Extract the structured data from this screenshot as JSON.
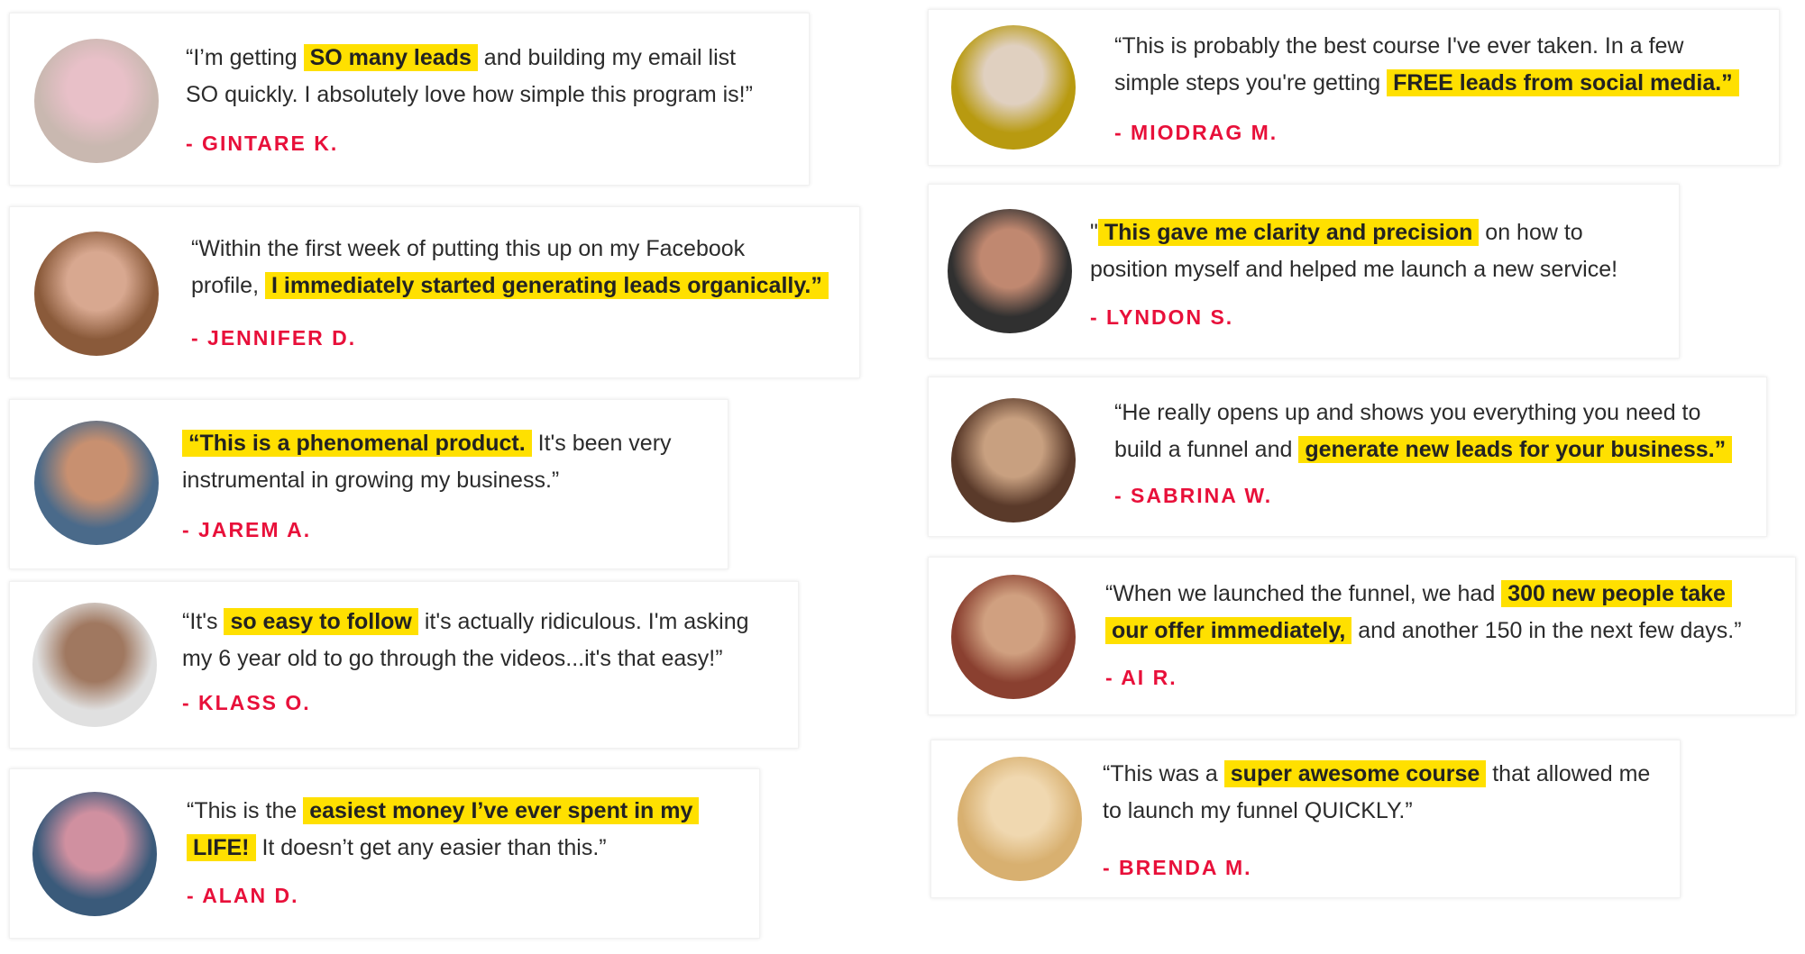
{
  "colors": {
    "highlight": "#ffe000",
    "name": "#e8103a",
    "text": "#2b2b2b"
  },
  "testimonials": [
    {
      "name": "- GINTARE K.",
      "avatar": "photo-woman-blonde",
      "lines": [
        [
          {
            "t": "“I’m getting "
          },
          {
            "t": "SO many leads",
            "hl": true
          },
          {
            "t": " and building my email list"
          }
        ],
        [
          {
            "t": "SO quickly. I absolutely love how simple this program is!”"
          }
        ]
      ]
    },
    {
      "name": "- JENNIFER D.",
      "avatar": "photo-woman-auburn",
      "lines": [
        [
          {
            "t": "“Within the first week of putting this up on my Facebook"
          }
        ],
        [
          {
            "t": "profile, "
          },
          {
            "t": "I immediately started generating leads organically.”",
            "hl": true
          }
        ]
      ]
    },
    {
      "name": "- JAREM A.",
      "avatar": "photo-man-smiling",
      "lines": [
        [
          {
            "t": "“This is a phenomenal product.",
            "hl": true
          },
          {
            "t": " It's been very"
          }
        ],
        [
          {
            "t": "instrumental in growing my business.”"
          }
        ]
      ]
    },
    {
      "name": "- KLASS O.",
      "avatar": "photo-man-bald",
      "lines": [
        [
          {
            "t": "“It's "
          },
          {
            "t": "so easy to follow",
            "hl": true
          },
          {
            "t": " it's actually ridiculous. I'm asking"
          }
        ],
        [
          {
            "t": "my 6 year old to go through the videos...it's that easy!”"
          }
        ]
      ]
    },
    {
      "name": "- ALAN D.",
      "avatar": "photo-family",
      "lines": [
        [
          {
            "t": "“This is the "
          },
          {
            "t": "easiest money I’ve ever spent in my",
            "hl": true
          }
        ],
        [
          {
            "t": "LIFE!",
            "hl": true
          },
          {
            "t": " It doesn’t get any easier than this.”"
          }
        ]
      ]
    },
    {
      "name": "- MIODRAG M.",
      "avatar": "photo-man-yellow-bg",
      "lines": [
        [
          {
            "t": "“This is probably the best course I've ever taken. In a few"
          }
        ],
        [
          {
            "t": "simple steps you're getting "
          },
          {
            "t": "FREE leads from social media.”",
            "hl": true
          }
        ]
      ]
    },
    {
      "name": "- LYNDON S.",
      "avatar": "photo-man-beard",
      "lines": [
        [
          {
            "t": "\""
          },
          {
            "t": "This gave me clarity and precision",
            "hl": true
          },
          {
            "t": " on how to"
          }
        ],
        [
          {
            "t": "position myself and helped me launch a new service!"
          }
        ]
      ]
    },
    {
      "name": "- SABRINA W.",
      "avatar": "photo-woman-brunette",
      "lines": [
        [
          {
            "t": "“He really opens up and shows you everything you need to"
          }
        ],
        [
          {
            "t": "build a funnel and "
          },
          {
            "t": "generate new leads for your business.”",
            "hl": true
          }
        ]
      ]
    },
    {
      "name": "- AI R.",
      "avatar": "photo-man-glasses",
      "lines": [
        [
          {
            "t": "“When we launched the funnel, we had "
          },
          {
            "t": "300 new people take",
            "hl": true
          }
        ],
        [
          {
            "t": "our offer immediately,",
            "hl": true
          },
          {
            "t": " and another 150 in the next few days.”"
          }
        ]
      ]
    },
    {
      "name": "- BRENDA M.",
      "avatar": "photo-woman-blonde-short",
      "lines": [
        [
          {
            "t": "“This was a "
          },
          {
            "t": "super awesome course",
            "hl": true
          },
          {
            "t": " that allowed me"
          }
        ],
        [
          {
            "t": "to launch my funnel QUICKLY.”"
          }
        ]
      ]
    }
  ]
}
